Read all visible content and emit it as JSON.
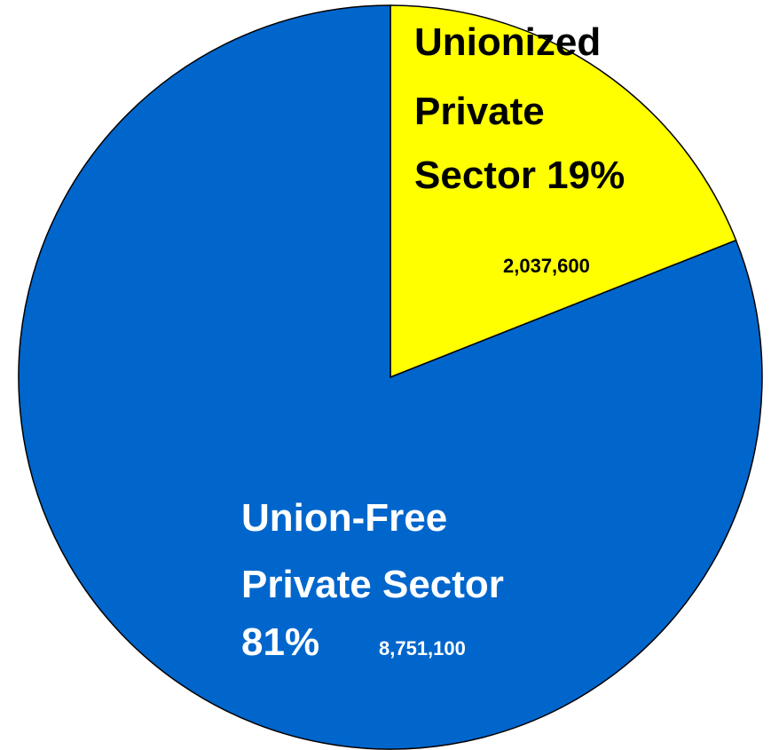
{
  "chart_data": {
    "type": "pie",
    "slices": [
      {
        "id": "unionized",
        "label_lines": [
          "Unionized",
          "Private",
          "Sector 19%"
        ],
        "percent": 19,
        "value": 2037600,
        "value_label": "2,037,600",
        "color": "#ffff00",
        "text_color": "#000000"
      },
      {
        "id": "union-free",
        "label_lines": [
          "Union-Free",
          "Private Sector",
          "81%"
        ],
        "percent": 81,
        "value": 8751100,
        "value_label": "8,751,100",
        "color": "#0066cc",
        "text_color": "#ffffff"
      }
    ],
    "start_angle_deg": 0,
    "direction": "clockwise",
    "outline_color": "#000000"
  }
}
